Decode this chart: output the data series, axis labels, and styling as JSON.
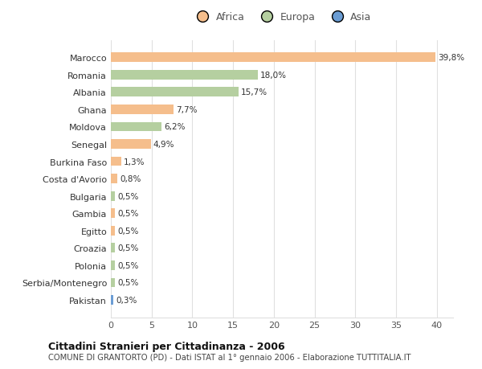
{
  "countries": [
    "Marocco",
    "Romania",
    "Albania",
    "Ghana",
    "Moldova",
    "Senegal",
    "Burkina Faso",
    "Costa d'Avorio",
    "Bulgaria",
    "Gambia",
    "Egitto",
    "Croazia",
    "Polonia",
    "Serbia/Montenegro",
    "Pakistan"
  ],
  "values": [
    39.8,
    18.0,
    15.7,
    7.7,
    6.2,
    4.9,
    1.3,
    0.8,
    0.5,
    0.5,
    0.5,
    0.5,
    0.5,
    0.5,
    0.3
  ],
  "labels": [
    "39,8%",
    "18,0%",
    "15,7%",
    "7,7%",
    "6,2%",
    "4,9%",
    "1,3%",
    "0,8%",
    "0,5%",
    "0,5%",
    "0,5%",
    "0,5%",
    "0,5%",
    "0,5%",
    "0,3%"
  ],
  "continents": [
    "Africa",
    "Europa",
    "Europa",
    "Africa",
    "Europa",
    "Africa",
    "Africa",
    "Africa",
    "Europa",
    "Africa",
    "Africa",
    "Europa",
    "Europa",
    "Europa",
    "Asia"
  ],
  "colors": {
    "Africa": "#F5BE8C",
    "Europa": "#B5CFA0",
    "Asia": "#6B9DD4"
  },
  "xlim": [
    0,
    42
  ],
  "xticks": [
    0,
    5,
    10,
    15,
    20,
    25,
    30,
    35,
    40
  ],
  "title_bold": "Cittadini Stranieri per Cittadinanza - 2006",
  "subtitle": "COMUNE DI GRANTORTO (PD) - Dati ISTAT al 1° gennaio 2006 - Elaborazione TUTTITALIA.IT",
  "background_color": "#ffffff",
  "plot_bg_color": "#ffffff",
  "grid_color": "#e0e0e0"
}
